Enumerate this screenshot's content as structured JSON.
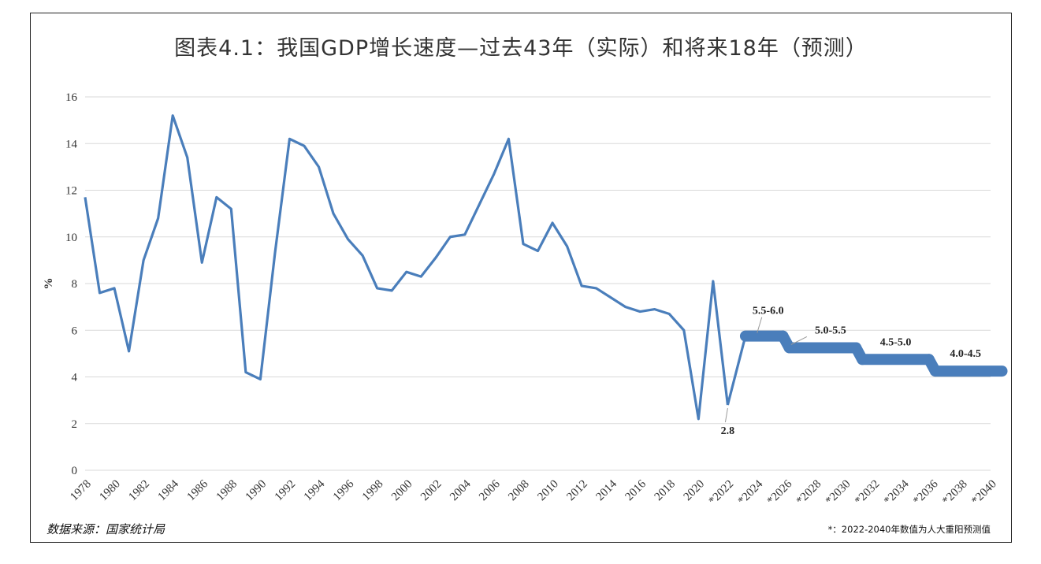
{
  "chart_data": {
    "type": "line",
    "title": "图表4.1：我国GDP增长速度—过去43年（实际）和将来18年（预测）",
    "ylabel": "%",
    "ylim": [
      0,
      16
    ],
    "yticks": [
      0,
      2,
      4,
      6,
      8,
      10,
      12,
      14,
      16
    ],
    "grid": true,
    "xrange": [
      1978,
      2040
    ],
    "xticks": [
      "1978",
      "1980",
      "1982",
      "1984",
      "1986",
      "1988",
      "1990",
      "1992",
      "1994",
      "1996",
      "1998",
      "2000",
      "2002",
      "2004",
      "2006",
      "2008",
      "2010",
      "2012",
      "2014",
      "2016",
      "2018",
      "2020",
      "*2022",
      "*2024",
      "*2026",
      "*2028",
      "*2030",
      "*2032",
      "*2034",
      "*2036",
      "*2038",
      "*2040"
    ],
    "series": [
      {
        "color": "#4A7EBB",
        "x": [
          1978,
          1979,
          1980,
          1981,
          1982,
          1983,
          1984,
          1985,
          1986,
          1987,
          1988,
          1989,
          1990,
          1991,
          1992,
          1993,
          1994,
          1995,
          1996,
          1997,
          1998,
          1999,
          2000,
          2001,
          2002,
          2003,
          2004,
          2005,
          2006,
          2007,
          2008,
          2009,
          2010,
          2011,
          2012,
          2013,
          2014,
          2015,
          2016,
          2017,
          2018,
          2019,
          2020,
          2021,
          2022
        ],
        "y": [
          11.7,
          7.6,
          7.8,
          5.1,
          9.0,
          10.8,
          15.2,
          13.4,
          8.9,
          11.7,
          11.2,
          4.2,
          3.9,
          9.3,
          14.2,
          13.9,
          13.0,
          11.0,
          9.9,
          9.2,
          7.8,
          7.7,
          8.5,
          8.3,
          9.1,
          10.0,
          10.1,
          11.4,
          12.7,
          14.2,
          9.7,
          9.4,
          10.6,
          9.6,
          7.9,
          7.8,
          7.4,
          7.0,
          6.8,
          6.9,
          6.7,
          6.0,
          2.2,
          8.1,
          2.8
        ]
      }
    ],
    "forecast": [
      {
        "label": "5.5-6.0",
        "x": [
          2023,
          2026
        ],
        "low": 5.5,
        "high": 6.0
      },
      {
        "label": "5.0-5.5",
        "x": [
          2026,
          2031
        ],
        "low": 5.0,
        "high": 5.5
      },
      {
        "label": "4.5-5.0",
        "x": [
          2031,
          2036
        ],
        "low": 4.5,
        "high": 5.0
      },
      {
        "label": "4.0-4.5",
        "x": [
          2036,
          2041
        ],
        "low": 4.0,
        "high": 4.5
      }
    ],
    "annotations": [
      {
        "text": "2.8",
        "x": 2022,
        "y": 2.8
      }
    ]
  },
  "footer": {
    "source": "数据来源：国家统计局",
    "note": "*：2022-2040年数值为人大重阳预测值"
  },
  "colors": {
    "line": "#4A7EBB",
    "grid": "#D9D9D9"
  }
}
